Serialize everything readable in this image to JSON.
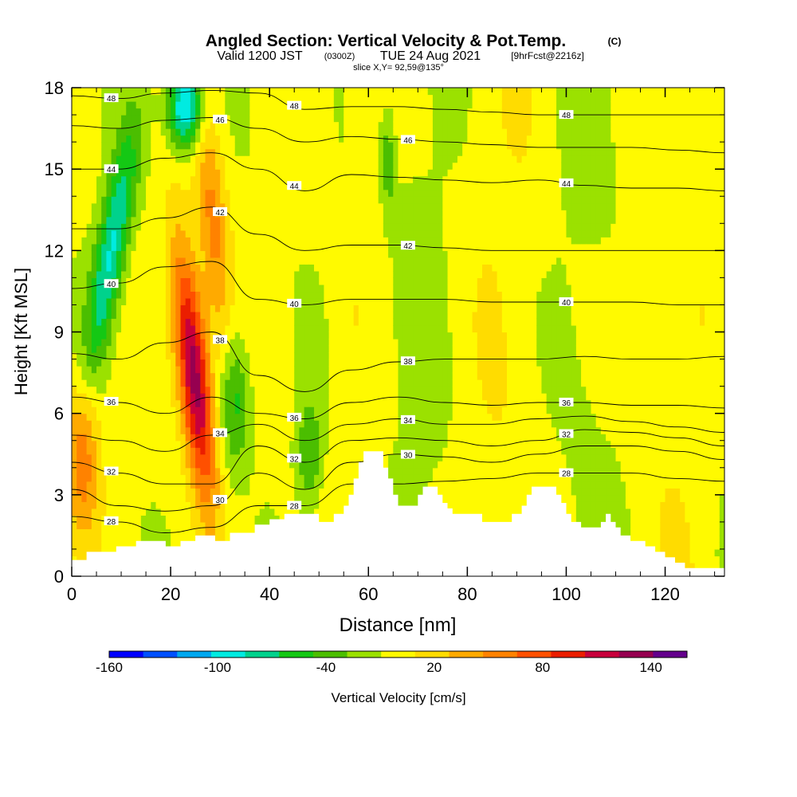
{
  "chart_data": {
    "type": "heatmap",
    "title": "Angled Section: Vertical Velocity & Pot.Temp.",
    "title_unit_tag": "(C)",
    "subtitle": {
      "valid_label": "Valid 1200 JST",
      "utc_label": "(0300Z)",
      "date_label": "TUE 24 Aug 2021",
      "forecast_label": "[9hrFcst@2216z]"
    },
    "slice_label": "slice X,Y= 92,59@135°",
    "xlabel": "Distance [nm]",
    "ylabel": "Height [Kft MSL]",
    "xlim": [
      0,
      132
    ],
    "ylim": [
      0,
      18
    ],
    "x_ticks": [
      "0",
      "20",
      "40",
      "60",
      "80",
      "100",
      "120"
    ],
    "y_ticks": [
      "0",
      "3",
      "6",
      "9",
      "12",
      "15",
      "18"
    ],
    "colorbar": {
      "label": "Vertical Velocity [cm/s]",
      "tick_labels": [
        "-160",
        "-100",
        "-40",
        "20",
        "80",
        "140"
      ],
      "range": [
        -160,
        160
      ],
      "step": 20,
      "colors": [
        "#0000ff",
        "#0050ff",
        "#00a8f0",
        "#00ebe1",
        "#00d28c",
        "#14c814",
        "#4bbe00",
        "#9be100",
        "#fffa00",
        "#ffdc00",
        "#ffaa00",
        "#ff8200",
        "#ff5000",
        "#eb1e00",
        "#c8003c",
        "#960050",
        "#64008c"
      ]
    },
    "theta_contours": [
      {
        "value": 48,
        "label": "48",
        "heights": [
          17.7,
          17.6,
          17.8,
          17.9,
          17.8,
          17.2,
          17.3,
          17.3,
          17.2,
          17.1,
          17.0,
          17.0,
          17.0,
          17.0,
          17.0
        ]
      },
      {
        "value": 46,
        "label": "46",
        "heights": [
          16.6,
          16.5,
          16.8,
          16.9,
          16.5,
          16.0,
          16.2,
          16.1,
          16.0,
          15.9,
          15.8,
          15.8,
          15.8,
          15.7,
          15.6
        ]
      },
      {
        "value": 44,
        "label": "44",
        "heights": [
          15.0,
          15.0,
          15.4,
          15.6,
          15.0,
          14.2,
          14.8,
          14.7,
          14.6,
          14.5,
          14.6,
          14.4,
          14.3,
          14.3,
          14.2
        ]
      },
      {
        "value": 42,
        "label": "42",
        "heights": [
          12.8,
          12.8,
          13.2,
          13.6,
          12.6,
          12.0,
          12.2,
          12.2,
          12.1,
          12.0,
          12.0,
          12.0,
          12.0,
          12.0,
          12.0
        ]
      },
      {
        "value": 40,
        "label": "40",
        "heights": [
          10.6,
          10.8,
          11.4,
          11.6,
          10.2,
          10.0,
          10.2,
          10.2,
          10.2,
          10.1,
          10.1,
          10.1,
          10.1,
          10.0,
          10.0
        ]
      },
      {
        "value": 38,
        "label": "38",
        "heights": [
          8.2,
          8.0,
          8.6,
          9.0,
          7.4,
          6.8,
          7.6,
          7.9,
          8.0,
          8.0,
          8.0,
          8.1,
          8.0,
          8.0,
          8.1
        ]
      },
      {
        "value": 36,
        "label": "36",
        "heights": [
          6.6,
          6.4,
          6.0,
          6.6,
          6.0,
          5.8,
          6.4,
          6.6,
          6.4,
          6.3,
          6.4,
          6.4,
          6.3,
          6.3,
          6.2
        ]
      },
      {
        "value": 34,
        "label": "34",
        "heights": [
          5.2,
          5.0,
          4.6,
          5.2,
          5.6,
          5.0,
          5.6,
          5.8,
          5.6,
          5.6,
          5.8,
          5.9,
          5.7,
          5.5,
          5.3
        ]
      },
      {
        "value": 32,
        "label": "32",
        "heights": [
          4.2,
          3.8,
          3.4,
          3.4,
          4.8,
          4.2,
          5.0,
          5.1,
          5.0,
          4.8,
          5.0,
          5.4,
          5.3,
          5.1,
          4.8
        ]
      },
      {
        "value": 30,
        "label": "30",
        "heights": [
          3.2,
          2.6,
          2.4,
          2.6,
          3.8,
          3.2,
          4.2,
          4.5,
          4.4,
          4.2,
          4.5,
          4.8,
          4.8,
          4.6,
          4.3
        ]
      },
      {
        "value": 28,
        "label": "28",
        "heights": [
          2.2,
          2.0,
          1.6,
          1.8,
          2.6,
          2.6,
          3.4,
          3.4,
          3.5,
          3.6,
          3.8,
          3.8,
          3.8,
          3.6,
          3.5
        ]
      }
    ],
    "terrain_kft": [
      0.6,
      0.6,
      0.6,
      0.9,
      0.9,
      0.9,
      0.9,
      0.9,
      0.9,
      1.1,
      1.1,
      1.1,
      1.1,
      1.3,
      1.3,
      1.3,
      1.3,
      1.3,
      1.3,
      1.1,
      1.1,
      1.1,
      1.3,
      1.3,
      1.3,
      1.5,
      1.5,
      1.5,
      1.5,
      1.3,
      1.3,
      1.3,
      1.6,
      1.6,
      1.6,
      1.6,
      1.6,
      1.9,
      1.9,
      1.9,
      2.1,
      2.1,
      2.1,
      2.3,
      2.3,
      2.3,
      2.3,
      2.3,
      2.3,
      2.3,
      2.0,
      2.0,
      2.0,
      2.3,
      2.3,
      2.6,
      3.0,
      3.6,
      4.2,
      4.6,
      4.6,
      4.6,
      4.6,
      4.0,
      3.6,
      3.0,
      2.6,
      2.6,
      2.6,
      2.6,
      3.0,
      3.3,
      3.3,
      3.3,
      3.0,
      2.7,
      2.5,
      2.3,
      2.3,
      2.3,
      2.3,
      2.3,
      2.3,
      2.0,
      2.0,
      2.0,
      2.0,
      2.0,
      2.0,
      2.3,
      2.3,
      2.6,
      3.0,
      3.3,
      3.3,
      3.3,
      3.3,
      3.3,
      3.0,
      2.7,
      2.3,
      2.0,
      2.0,
      1.8,
      1.8,
      1.8,
      1.8,
      2.0,
      2.3,
      2.0,
      1.8,
      1.5,
      1.5,
      1.3,
      1.3,
      1.3,
      1.1,
      1.1,
      0.9,
      0.9,
      0.7,
      0.7,
      0.5,
      0.5,
      0.3,
      0.3,
      0.3,
      0.3,
      0.3,
      0.3,
      0.3,
      0.3,
      0.3
    ]
  }
}
